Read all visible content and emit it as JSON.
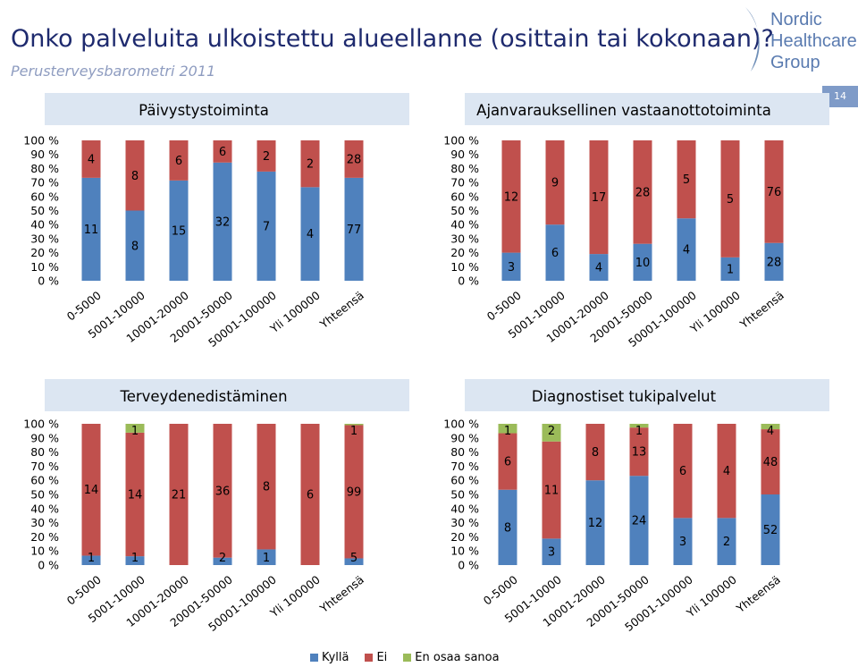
{
  "page": {
    "title": "Onko palveluita ulkoistettu alueellanne (osittain tai kokonaan)?",
    "subtitle": "Perusterveysbarometri 2011",
    "page_number": "14",
    "logo": {
      "line1": "Nordic",
      "line2": "Healthcare",
      "line3": "Group"
    }
  },
  "colors": {
    "kylla": "#4f81bd",
    "ei": "#c0504d",
    "en_osaa_sanoa": "#9bbb59",
    "header_band": "#dce6f2"
  },
  "legend": {
    "items": [
      "Kyllä",
      "Ei",
      "En osaa sanoa"
    ]
  },
  "chart_data": [
    {
      "type": "bar",
      "stacked": "percent",
      "title": "Päivystystoiminta",
      "categories": [
        "0-5000",
        "5001-10000",
        "10001-20000",
        "20001-50000",
        "50001-100000",
        "Yli 100000",
        "Yhteensä"
      ],
      "y_ticks": [
        "100 %",
        "90 %",
        "80 %",
        "70 %",
        "60 %",
        "50 %",
        "40 %",
        "30 %",
        "20 %",
        "10 %",
        "0 %"
      ],
      "series": [
        {
          "name": "Kyllä",
          "values": [
            11,
            8,
            15,
            32,
            7,
            4,
            77
          ]
        },
        {
          "name": "Ei",
          "values": [
            4,
            8,
            6,
            6,
            2,
            2,
            28
          ]
        },
        {
          "name": "En osaa sanoa",
          "values": [
            0,
            0,
            0,
            0,
            0,
            0,
            0
          ]
        }
      ]
    },
    {
      "type": "bar",
      "stacked": "percent",
      "title": "Ajanvarauksellinen vastaanottotoiminta",
      "categories": [
        "0-5000",
        "5001-10000",
        "10001-20000",
        "20001-50000",
        "50001-100000",
        "Yli 100000",
        "Yhteensä"
      ],
      "y_ticks": [
        "100 %",
        "90 %",
        "80 %",
        "70 %",
        "60 %",
        "50 %",
        "40 %",
        "30 %",
        "20 %",
        "10 %",
        "0 %"
      ],
      "series": [
        {
          "name": "Kyllä",
          "values": [
            3,
            6,
            4,
            10,
            4,
            1,
            28
          ]
        },
        {
          "name": "Ei",
          "values": [
            12,
            9,
            17,
            28,
            5,
            5,
            76
          ]
        },
        {
          "name": "En osaa sanoa",
          "values": [
            0,
            0,
            0,
            0,
            0,
            0,
            0
          ]
        }
      ]
    },
    {
      "type": "bar",
      "stacked": "percent",
      "title": "Terveydenedistäminen",
      "categories": [
        "0-5000",
        "5001-10000",
        "10001-20000",
        "20001-50000",
        "50001-100000",
        "Yli 100000",
        "Yhteensä"
      ],
      "y_ticks": [
        "100 %",
        "90 %",
        "80 %",
        "70 %",
        "60 %",
        "50 %",
        "40 %",
        "30 %",
        "20 %",
        "10 %",
        "0 %"
      ],
      "series": [
        {
          "name": "Kyllä",
          "values": [
            1,
            1,
            0,
            2,
            1,
            0,
            5
          ]
        },
        {
          "name": "Ei",
          "values": [
            14,
            14,
            21,
            36,
            8,
            6,
            99
          ]
        },
        {
          "name": "En osaa sanoa",
          "values": [
            0,
            1,
            0,
            0,
            0,
            0,
            1
          ]
        }
      ]
    },
    {
      "type": "bar",
      "stacked": "percent",
      "title": "Diagnostiset tukipalvelut",
      "categories": [
        "0-5000",
        "5001-10000",
        "10001-20000",
        "20001-50000",
        "50001-100000",
        "Yli 100000",
        "Yhteensä"
      ],
      "y_ticks": [
        "100 %",
        "90 %",
        "80 %",
        "70 %",
        "60 %",
        "50 %",
        "40 %",
        "30 %",
        "20 %",
        "10 %",
        "0 %"
      ],
      "series": [
        {
          "name": "Kyllä",
          "values": [
            8,
            3,
            12,
            24,
            3,
            2,
            52
          ]
        },
        {
          "name": "Ei",
          "values": [
            6,
            11,
            8,
            13,
            6,
            4,
            48
          ]
        },
        {
          "name": "En osaa sanoa",
          "values": [
            1,
            2,
            0,
            1,
            0,
            0,
            4
          ]
        }
      ]
    }
  ]
}
